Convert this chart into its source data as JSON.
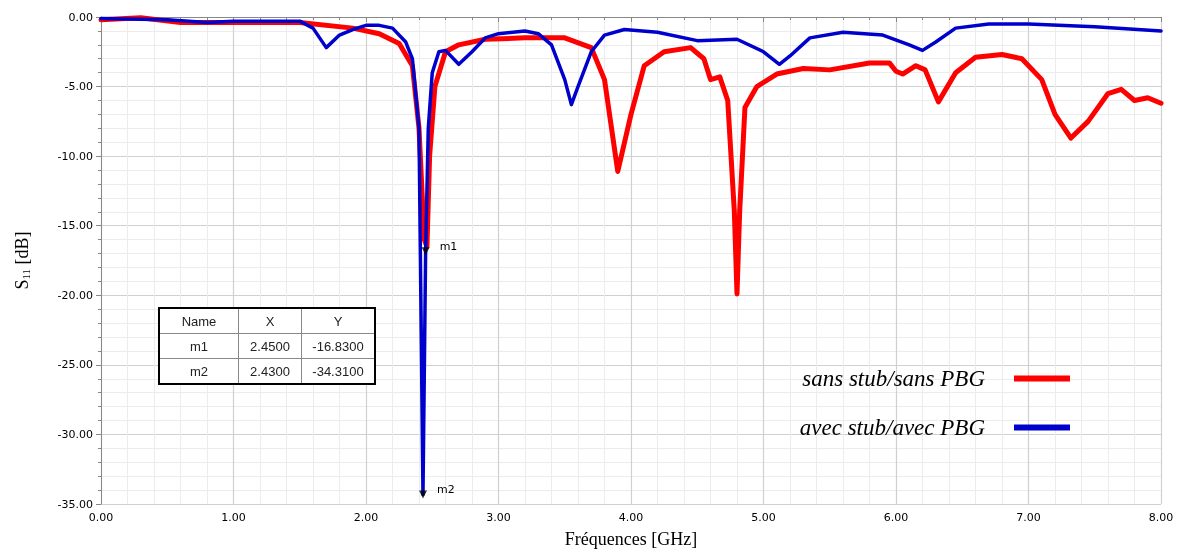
{
  "chart_data": {
    "type": "line",
    "xlabel": "Fréquences [GHz]",
    "ylabel": "S$_{11}$ [dB]",
    "xlim": [
      0,
      8
    ],
    "xticks": [
      {
        "value": 0,
        "label": "0.00"
      },
      {
        "value": 1,
        "label": "1.00"
      },
      {
        "value": 2,
        "label": "2.00"
      },
      {
        "value": 3,
        "label": "3.00"
      },
      {
        "value": 4,
        "label": "4.00"
      },
      {
        "value": 5,
        "label": "5.00"
      },
      {
        "value": 6,
        "label": "6.00"
      },
      {
        "value": 7,
        "label": "7.00"
      },
      {
        "value": 8,
        "label": "8.00"
      }
    ],
    "ylim": [
      -35,
      0
    ],
    "yticks": [
      {
        "value": -35,
        "label": "-35.00"
      },
      {
        "value": -30,
        "label": "-30.00"
      },
      {
        "value": -25,
        "label": "-25.00"
      },
      {
        "value": -20,
        "label": "-20.00"
      },
      {
        "value": -15,
        "label": "-15.00"
      },
      {
        "value": -10,
        "label": "-10.00"
      },
      {
        "value": -5,
        "label": "-5.00"
      },
      {
        "value": 0,
        "label": "0.00"
      }
    ],
    "grid": true,
    "legend": "bottom right",
    "marker": "none",
    "line_style": "solid",
    "series": [
      {
        "name": "sans stub/sans PBG",
        "color": "#ff0000",
        "x": [
          0,
          0.3,
          0.6,
          1.0,
          1.5,
          1.9,
          2.1,
          2.25,
          2.35,
          2.4,
          2.44,
          2.46,
          2.48,
          2.52,
          2.6,
          2.7,
          2.9,
          3.2,
          3.5,
          3.7,
          3.8,
          3.9,
          4.0,
          4.1,
          4.25,
          4.45,
          4.55,
          4.6,
          4.67,
          4.73,
          4.78,
          4.8,
          4.82,
          4.86,
          4.95,
          5.1,
          5.3,
          5.5,
          5.8,
          5.95,
          6.0,
          6.05,
          6.15,
          6.22,
          6.32,
          6.45,
          6.6,
          6.8,
          6.95,
          7.1,
          7.2,
          7.32,
          7.45,
          7.6,
          7.7,
          7.8,
          7.9,
          8.0
        ],
        "values": [
          -0.2,
          -0.05,
          -0.4,
          -0.4,
          -0.4,
          -0.8,
          -1.2,
          -1.9,
          -3.5,
          -8,
          -16,
          -16.5,
          -10,
          -5,
          -2.5,
          -2.0,
          -1.6,
          -1.5,
          -1.5,
          -2.2,
          -4.5,
          -11.1,
          -7,
          -3.5,
          -2.5,
          -2.2,
          -3,
          -4.5,
          -4.3,
          -6,
          -14,
          -19.9,
          -14,
          -6.5,
          -5,
          -4.1,
          -3.7,
          -3.8,
          -3.3,
          -3.3,
          -3.9,
          -4.1,
          -3.5,
          -3.8,
          -6.1,
          -4,
          -2.9,
          -2.7,
          -3.0,
          -4.5,
          -7,
          -8.7,
          -7.5,
          -5.5,
          -5.2,
          -6.0,
          -5.8,
          -6.2
        ]
      },
      {
        "name": "avec stub/avec PBG",
        "color": "#0000cc",
        "x": [
          0,
          0.5,
          0.8,
          1.0,
          1.5,
          1.6,
          1.7,
          1.8,
          1.9,
          2.0,
          2.1,
          2.2,
          2.3,
          2.35,
          2.4,
          2.43,
          2.45,
          2.47,
          2.5,
          2.55,
          2.6,
          2.7,
          2.8,
          2.9,
          3.0,
          3.2,
          3.3,
          3.4,
          3.5,
          3.55,
          3.6,
          3.7,
          3.8,
          3.95,
          4.2,
          4.5,
          4.8,
          5.0,
          5.12,
          5.2,
          5.35,
          5.6,
          5.9,
          6.1,
          6.2,
          6.3,
          6.45,
          6.7,
          7.0,
          7.5,
          8.0
        ],
        "values": [
          -0.1,
          -0.2,
          -0.4,
          -0.3,
          -0.3,
          -0.8,
          -2.2,
          -1.3,
          -0.9,
          -0.6,
          -0.6,
          -0.8,
          -1.8,
          -3,
          -8,
          -34.31,
          -16.83,
          -8,
          -4,
          -2.5,
          -2.4,
          -3.4,
          -2.5,
          -1.5,
          -1.2,
          -1.0,
          -1.2,
          -2.0,
          -4.5,
          -6.3,
          -5,
          -2.5,
          -1.3,
          -0.9,
          -1.1,
          -1.7,
          -1.6,
          -2.5,
          -3.4,
          -2.8,
          -1.5,
          -1.1,
          -1.3,
          -2.0,
          -2.4,
          -1.8,
          -0.8,
          -0.5,
          -0.5,
          -0.7,
          -1.0
        ]
      },
      {
        "type": "scatter",
        "marker": "triangle",
        "color": "#000000",
        "x": [
          2.45,
          2.43
        ],
        "values": [
          -16.83,
          -34.31
        ]
      }
    ],
    "annotations": [
      {
        "text": "m1",
        "x": 2.45,
        "y": -16.83
      },
      {
        "text": "m2",
        "x": 2.43,
        "y": -34.31
      },
      "Name",
      "X",
      "Y",
      "m1",
      "2.4500",
      "-16.8300",
      "m2",
      "2.4300",
      "-34.3100"
    ]
  }
}
